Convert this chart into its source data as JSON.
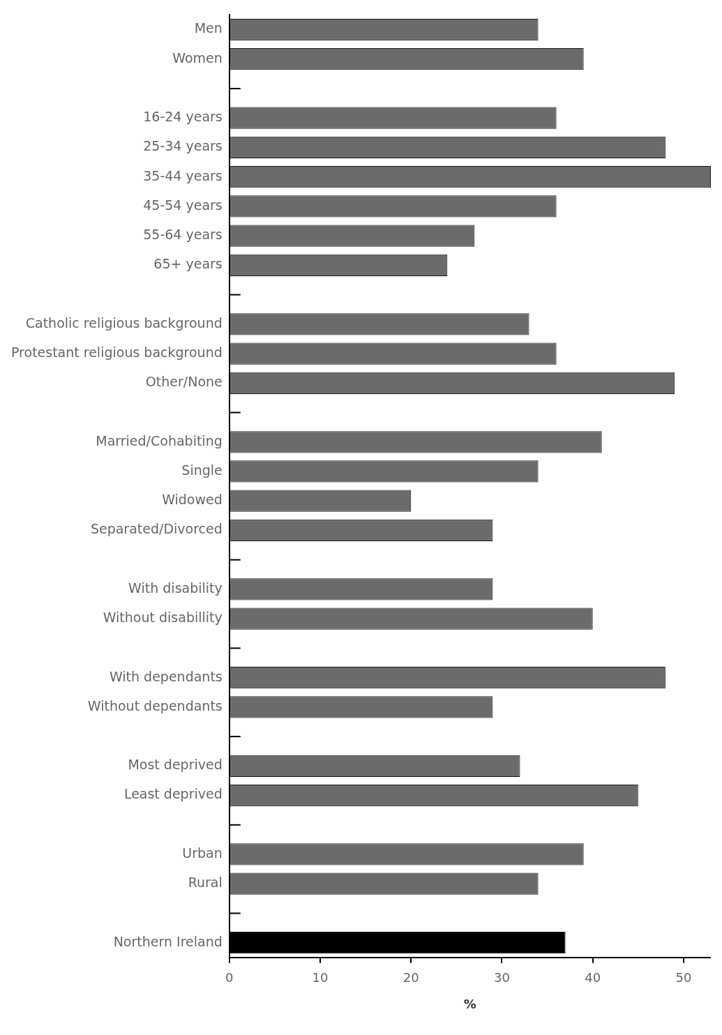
{
  "chart_data": {
    "type": "bar",
    "orientation": "horizontal",
    "xlabel": "%",
    "categories": [
      "Men",
      "Women",
      null,
      "16-24 years",
      "25-34 years",
      "35-44 years",
      "45-54 years",
      "55-64 years",
      "65+ years",
      null,
      "Catholic religious background",
      "Protestant religious background",
      "Other/None",
      null,
      "Married/Cohabiting",
      "Single",
      "Widowed",
      "Separated/Divorced",
      null,
      "With disability",
      "Without disabillity",
      null,
      "With dependants",
      "Without dependants",
      null,
      "Most deprived",
      "Least deprived",
      null,
      "Urban",
      "Rural",
      null,
      "Northern Ireland"
    ],
    "values": [
      34,
      39,
      null,
      36,
      48,
      53,
      36,
      27,
      24,
      null,
      33,
      36,
      49,
      null,
      41,
      34,
      20,
      29,
      null,
      29,
      40,
      null,
      48,
      29,
      null,
      32,
      45,
      null,
      39,
      34,
      null,
      37
    ],
    "colors": [
      "#6b6b6b",
      "#6b6b6b",
      null,
      "#6b6b6b",
      "#6b6b6b",
      "#6b6b6b",
      "#6b6b6b",
      "#6b6b6b",
      "#6b6b6b",
      null,
      "#6b6b6b",
      "#6b6b6b",
      "#6b6b6b",
      null,
      "#6b6b6b",
      "#6b6b6b",
      "#6b6b6b",
      "#6b6b6b",
      null,
      "#6b6b6b",
      "#6b6b6b",
      null,
      "#6b6b6b",
      "#6b6b6b",
      null,
      "#6b6b6b",
      "#6b6b6b",
      null,
      "#6b6b6b",
      "#6b6b6b",
      null,
      "#000000"
    ],
    "xlim": [
      0,
      53
    ],
    "xticks": [
      0,
      10,
      20,
      30,
      40,
      50
    ],
    "grid": false,
    "legend": false
  }
}
